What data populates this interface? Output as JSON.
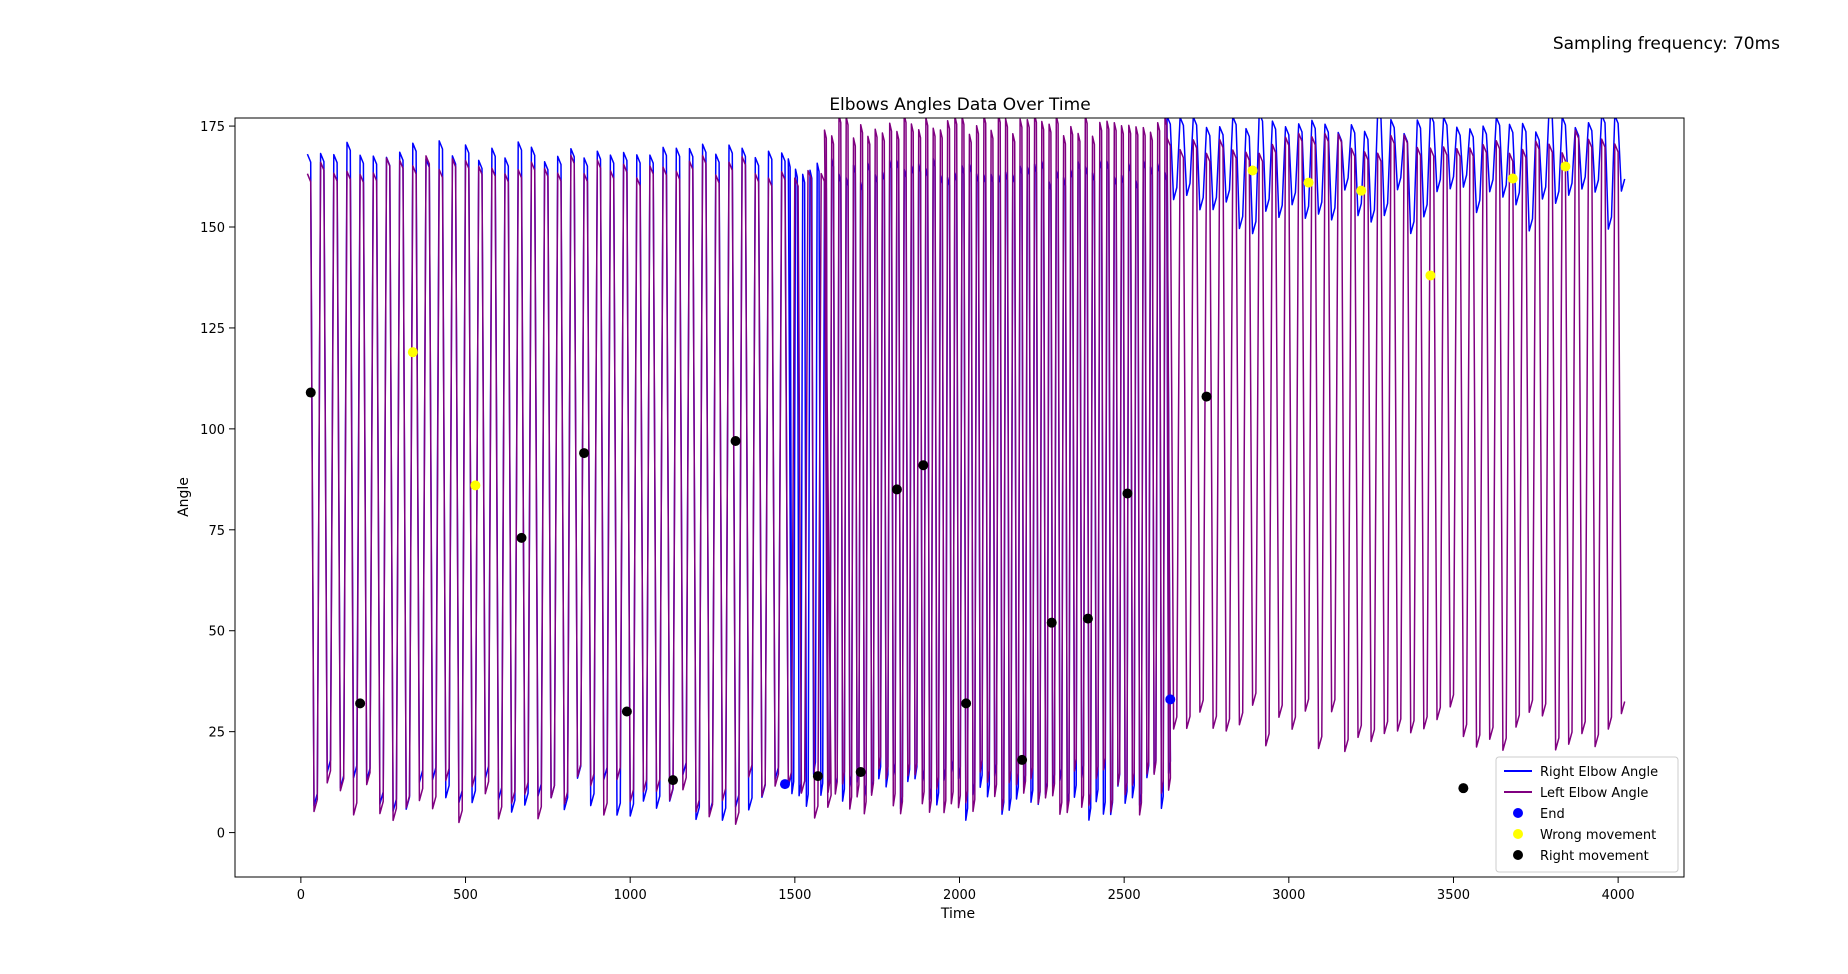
{
  "figure_note": "Sampling frequency: 70ms",
  "chart_data": {
    "type": "line",
    "title": "Elbows Angles Data Over Time",
    "xlabel": "Time",
    "ylabel": "Angle",
    "xlim": [
      -200,
      4200
    ],
    "ylim": [
      -11,
      177
    ],
    "xticks": [
      0,
      500,
      1000,
      1500,
      2000,
      2500,
      3000,
      3500,
      4000
    ],
    "yticks": [
      0,
      25,
      50,
      75,
      100,
      125,
      150,
      175
    ],
    "grid": false,
    "legend_position": "lower right",
    "series": [
      {
        "name": "Right Elbow Angle",
        "color": "#0000ff",
        "cycles": [
          {
            "t0": 20,
            "t1": 1480,
            "period": 40,
            "max": 172,
            "min": 3
          },
          {
            "t0": 1480,
            "t1": 2630,
            "period": 22,
            "max": 167,
            "min": 3
          },
          {
            "t0": 2630,
            "t1": 4010,
            "period": 40,
            "max": 179,
            "min": 148
          }
        ]
      },
      {
        "name": "Left Elbow Angle",
        "color": "#800080",
        "cycles": [
          {
            "t0": 20,
            "t1": 1590,
            "period": 40,
            "max": 168,
            "min": 2
          },
          {
            "t0": 1590,
            "t1": 2630,
            "period": 22,
            "max": 178,
            "min": 4
          },
          {
            "t0": 2630,
            "t1": 4010,
            "period": 40,
            "max": 174,
            "min": 20
          }
        ]
      }
    ],
    "markers": [
      {
        "name": "End",
        "color": "#0000ff",
        "points": [
          [
            1470,
            12
          ],
          [
            2640,
            33
          ]
        ]
      },
      {
        "name": "Wrong movement",
        "color": "#ffff00",
        "points": [
          [
            340,
            119
          ],
          [
            530,
            86
          ],
          [
            2890,
            164
          ],
          [
            3060,
            161
          ],
          [
            3220,
            159
          ],
          [
            3430,
            138
          ],
          [
            3680,
            162
          ],
          [
            3840,
            165
          ]
        ]
      },
      {
        "name": "Right movement",
        "color": "#000000",
        "points": [
          [
            30,
            109
          ],
          [
            180,
            32
          ],
          [
            670,
            73
          ],
          [
            860,
            94
          ],
          [
            990,
            30
          ],
          [
            1130,
            13
          ],
          [
            1320,
            97
          ],
          [
            1570,
            14
          ],
          [
            1700,
            15
          ],
          [
            1810,
            85
          ],
          [
            1890,
            91
          ],
          [
            2020,
            32
          ],
          [
            2190,
            18
          ],
          [
            2280,
            52
          ],
          [
            2390,
            53
          ],
          [
            2510,
            84
          ],
          [
            2750,
            108
          ],
          [
            3530,
            11
          ]
        ]
      }
    ]
  }
}
